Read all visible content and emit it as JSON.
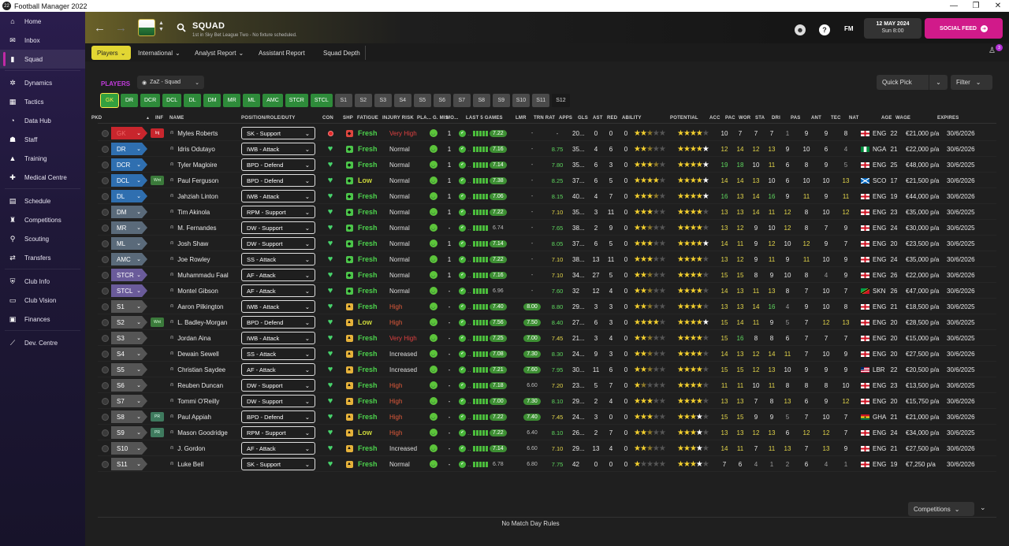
{
  "window": {
    "title": "Football Manager 2022"
  },
  "sidebar": {
    "items": [
      {
        "label": "Home",
        "icon": "home-icon",
        "glyph": "⌂"
      },
      {
        "label": "Inbox",
        "icon": "inbox-icon",
        "glyph": "✉"
      },
      {
        "label": "Squad",
        "icon": "squad-icon",
        "glyph": "▮",
        "active": true
      },
      {
        "label": "Dynamics",
        "icon": "dynamics-icon",
        "glyph": "✲"
      },
      {
        "label": "Tactics",
        "icon": "tactics-icon",
        "glyph": "▦"
      },
      {
        "label": "Data Hub",
        "icon": "data-hub-icon",
        "glyph": "◔"
      },
      {
        "label": "Staff",
        "icon": "staff-icon",
        "glyph": "☗"
      },
      {
        "label": "Training",
        "icon": "training-icon",
        "glyph": "▲"
      },
      {
        "label": "Medical Centre",
        "icon": "medical-icon",
        "glyph": "✚"
      },
      {
        "label": "Schedule",
        "icon": "schedule-icon",
        "glyph": "▤"
      },
      {
        "label": "Competitions",
        "icon": "trophy-icon",
        "glyph": "♜"
      },
      {
        "label": "Scouting",
        "icon": "scouting-icon",
        "glyph": "⚲"
      },
      {
        "label": "Transfers",
        "icon": "transfers-icon",
        "glyph": "⇄"
      },
      {
        "label": "Club Info",
        "icon": "club-info-icon",
        "glyph": "⛨"
      },
      {
        "label": "Club Vision",
        "icon": "club-vision-icon",
        "glyph": "▭"
      },
      {
        "label": "Finances",
        "icon": "finances-icon",
        "glyph": "▣"
      },
      {
        "label": "Dev. Centre",
        "icon": "dev-centre-icon",
        "glyph": "⟋"
      }
    ]
  },
  "header": {
    "title": "SQUAD",
    "subtitle": "1st in Sky Bet League Two - No fixture scheduled.",
    "fm_label": "FM",
    "date": "12 MAY 2024",
    "time": "Sun 8:00",
    "social_feed": "SOCIAL FEED",
    "notification_count": "3"
  },
  "subnav": {
    "tabs": [
      {
        "label": "Players",
        "dropdown": true,
        "active": true
      },
      {
        "label": "International",
        "dropdown": true
      },
      {
        "label": "Analyst Report",
        "dropdown": true
      },
      {
        "label": "Assistant Report",
        "dropdown": false
      },
      {
        "label": "Squad Depth",
        "dropdown": false
      }
    ]
  },
  "panel": {
    "players_label": "PLAYERS",
    "view": "ZaZ - Squad",
    "quick_pick": "Quick Pick",
    "filter": "Filter",
    "position_filters": [
      "GK",
      "DR",
      "DCR",
      "DCL",
      "DL",
      "DM",
      "MR",
      "ML",
      "AMC",
      "STCR",
      "STCL",
      "S1",
      "S2",
      "S3",
      "S4",
      "S5",
      "S6",
      "S7",
      "S8",
      "S9",
      "S10",
      "S11",
      "S12"
    ],
    "competitions": "Competitions",
    "no_match_rules": "No Match Day Rules"
  },
  "columns": {
    "pkd": "PKD",
    "inf": "INF",
    "name": "NAME",
    "role": "POSITION/ROLE/DUTY",
    "con": "CON",
    "shp": "SHP",
    "fatigue": "FATIGUE",
    "injury": "INJURY RISK",
    "pla": "PLA...",
    "gmis": "G. MIS",
    "mo": "MO...",
    "last5": "LAST 5 GAMES",
    "lmr": "LMR",
    "trnrat": "TRN RAT",
    "apps": "APPS",
    "gls": "GLS",
    "ast": "AST",
    "red": "RED",
    "ability": "ABILITY",
    "potential": "POTENTIAL",
    "acc": "ACC",
    "pac": "PAC",
    "wor": "WOR",
    "sta": "STA",
    "dri": "DRI",
    "pas": "PAS",
    "ant": "ANT",
    "tec": "TEC",
    "nat": "NAT",
    "age": "AGE",
    "wage": "WAGE",
    "expires": "EXPIRES"
  },
  "colors": {
    "gk": "#c8262d",
    "def": "#2f6fb0",
    "mid": "#5a6a7a",
    "att": "#6a5b9a",
    "sub": "#555555",
    "fresh": "#4cd24c",
    "low": "#c9d43a",
    "very_high": "#e04040",
    "high": "#e05a3a",
    "normal": "#dddddd",
    "increased": "#dddddd"
  },
  "players": [
    {
      "pos": "GK",
      "pos_group": "gk",
      "inf": "Inj",
      "name": "Myles Roberts",
      "role": "SK - Support",
      "con": "dot",
      "shp": "red",
      "fatigue": "Fresh",
      "injury": "Very High",
      "gmis": "1",
      "rating": "7.22",
      "lmr": "-",
      "trn": "-",
      "apps": "20...",
      "gls": "0",
      "ast": "0",
      "red": "0",
      "ability": 2.5,
      "potential": 4,
      "acc": "10",
      "pac": "7",
      "wor": "7",
      "sta": "7",
      "dri": "1",
      "pas": "9",
      "ant": "9",
      "tec": "8",
      "nat": "ENG",
      "flag": "eng",
      "age": "22",
      "wage": "€21,000 p/a",
      "expires": "30/6/2026"
    },
    {
      "pos": "DR",
      "pos_group": "def",
      "inf": "",
      "name": "Idris Odutayo",
      "role": "IWB - Attack",
      "con": "heart",
      "shp": "green",
      "fatigue": "Fresh",
      "injury": "Normal",
      "gmis": "1",
      "rating": "7.16",
      "lmr": "-",
      "trn": "8.75",
      "apps": "35...",
      "gls": "4",
      "ast": "6",
      "red": "0",
      "ability": 2.5,
      "potential": 4.5,
      "acc": "12",
      "pac": "14",
      "wor": "12",
      "sta": "13",
      "dri": "9",
      "pas": "10",
      "ant": "6",
      "tec": "4",
      "nat": "NGA",
      "flag": "nga",
      "age": "21",
      "wage": "€22,000 p/a",
      "expires": "30/6/2026"
    },
    {
      "pos": "DCR",
      "pos_group": "def",
      "inf": "",
      "name": "Tyler Magloire",
      "role": "BPD - Defend",
      "con": "heart",
      "shp": "green",
      "fatigue": "Fresh",
      "injury": "Normal",
      "gmis": "1",
      "rating": "7.14",
      "lmr": "-",
      "trn": "7.80",
      "apps": "35...",
      "gls": "6",
      "ast": "3",
      "red": "0",
      "ability": 3.5,
      "potential": 4.5,
      "acc": "19",
      "pac": "18",
      "wor": "10",
      "sta": "11",
      "dri": "6",
      "pas": "8",
      "ant": "9",
      "tec": "5",
      "nat": "ENG",
      "flag": "eng",
      "age": "25",
      "wage": "€48,000 p/a",
      "expires": "30/6/2025"
    },
    {
      "pos": "DCL",
      "pos_group": "def",
      "inf": "Wnt",
      "name": "Paul Ferguson",
      "role": "BPD - Defend",
      "con": "heart",
      "shp": "green",
      "fatigue": "Low",
      "injury": "Normal",
      "gmis": "1",
      "rating": "7.38",
      "lmr": "-",
      "trn": "8.25",
      "apps": "37...",
      "gls": "6",
      "ast": "5",
      "red": "0",
      "ability": 4,
      "potential": 4.5,
      "acc": "14",
      "pac": "14",
      "wor": "13",
      "sta": "10",
      "dri": "6",
      "pas": "10",
      "ant": "10",
      "tec": "13",
      "nat": "SCO",
      "flag": "sco",
      "age": "17",
      "wage": "€21,500 p/a",
      "expires": "30/6/2026"
    },
    {
      "pos": "DL",
      "pos_group": "def",
      "inf": "",
      "name": "Jahziah Linton",
      "role": "IWB - Attack",
      "con": "heart",
      "shp": "green",
      "fatigue": "Fresh",
      "injury": "Normal",
      "gmis": "1",
      "rating": "7.06",
      "lmr": "-",
      "trn": "8.15",
      "apps": "40...",
      "gls": "4",
      "ast": "7",
      "red": "0",
      "ability": 3.5,
      "potential": 4.5,
      "acc": "16",
      "pac": "13",
      "wor": "14",
      "sta": "16",
      "dri": "9",
      "pas": "11",
      "ant": "9",
      "tec": "11",
      "nat": "ENG",
      "flag": "eng",
      "age": "19",
      "wage": "€44,000 p/a",
      "expires": "30/6/2026"
    },
    {
      "pos": "DM",
      "pos_group": "mid",
      "inf": "",
      "name": "Tim Akinola",
      "role": "RPM - Support",
      "con": "heart",
      "shp": "green",
      "fatigue": "Fresh",
      "injury": "Normal",
      "gmis": "1",
      "rating": "7.22",
      "lmr": "-",
      "trn": "7.10",
      "apps": "35...",
      "gls": "3",
      "ast": "11",
      "red": "0",
      "ability": 3,
      "potential": 4,
      "acc": "13",
      "pac": "13",
      "wor": "14",
      "sta": "11",
      "dri": "12",
      "pas": "8",
      "ant": "10",
      "tec": "12",
      "nat": "ENG",
      "flag": "eng",
      "age": "23",
      "wage": "€35,000 p/a",
      "expires": "30/6/2025"
    },
    {
      "pos": "MR",
      "pos_group": "mid",
      "inf": "",
      "name": "M. Fernandes",
      "role": "DW - Support",
      "con": "heart",
      "shp": "green",
      "fatigue": "Fresh",
      "injury": "Normal",
      "gmis": "-",
      "rating": "6.74",
      "lmr": "-",
      "trn": "7.65",
      "apps": "38...",
      "gls": "2",
      "ast": "9",
      "red": "0",
      "ability": 2.5,
      "potential": 4,
      "acc": "13",
      "pac": "12",
      "wor": "9",
      "sta": "10",
      "dri": "12",
      "pas": "8",
      "ant": "7",
      "tec": "9",
      "nat": "ENG",
      "flag": "eng",
      "age": "24",
      "wage": "€30,000 p/a",
      "expires": "30/6/2025"
    },
    {
      "pos": "ML",
      "pos_group": "mid",
      "inf": "",
      "name": "Josh Shaw",
      "role": "DW - Support",
      "con": "heart",
      "shp": "green",
      "fatigue": "Fresh",
      "injury": "Normal",
      "gmis": "1",
      "rating": "7.14",
      "lmr": "-",
      "trn": "8.05",
      "apps": "37...",
      "gls": "6",
      "ast": "5",
      "red": "0",
      "ability": 3,
      "potential": 4.5,
      "acc": "14",
      "pac": "11",
      "wor": "9",
      "sta": "12",
      "dri": "10",
      "pas": "12",
      "ant": "9",
      "tec": "7",
      "nat": "ENG",
      "flag": "eng",
      "age": "20",
      "wage": "€23,500 p/a",
      "expires": "30/6/2025"
    },
    {
      "pos": "AMC",
      "pos_group": "mid",
      "inf": "",
      "name": "Joe Rowley",
      "role": "SS - Attack",
      "con": "heart",
      "shp": "green",
      "fatigue": "Fresh",
      "injury": "Normal",
      "gmis": "1",
      "rating": "7.22",
      "lmr": "-",
      "trn": "7.10",
      "apps": "38...",
      "gls": "13",
      "ast": "11",
      "red": "0",
      "ability": 3,
      "potential": 4,
      "acc": "13",
      "pac": "12",
      "wor": "9",
      "sta": "11",
      "dri": "9",
      "pas": "11",
      "ant": "10",
      "tec": "9",
      "nat": "ENG",
      "flag": "eng",
      "age": "24",
      "wage": "€35,000 p/a",
      "expires": "30/6/2026"
    },
    {
      "pos": "STCR",
      "pos_group": "att",
      "inf": "",
      "name": "Muhammadu Faal",
      "role": "AF - Attack",
      "con": "heart",
      "shp": "green",
      "fatigue": "Fresh",
      "injury": "Normal",
      "gmis": "1",
      "rating": "7.16",
      "lmr": "-",
      "trn": "7.10",
      "apps": "34...",
      "gls": "27",
      "ast": "5",
      "red": "0",
      "ability": 2.5,
      "potential": 4,
      "acc": "15",
      "pac": "15",
      "wor": "8",
      "sta": "9",
      "dri": "10",
      "pas": "8",
      "ant": "4",
      "tec": "9",
      "nat": "ENG",
      "flag": "eng",
      "age": "26",
      "wage": "€22,000 p/a",
      "expires": "30/6/2026"
    },
    {
      "pos": "STCL",
      "pos_group": "att",
      "inf": "",
      "name": "Montel Gibson",
      "role": "AF - Attack",
      "con": "heart",
      "shp": "green",
      "fatigue": "Fresh",
      "injury": "Normal",
      "gmis": "-",
      "rating": "6.96",
      "lmr": "-",
      "trn": "7.60",
      "apps": "32",
      "gls": "12",
      "ast": "4",
      "red": "0",
      "ability": 2.5,
      "potential": 4,
      "acc": "14",
      "pac": "13",
      "wor": "11",
      "sta": "13",
      "dri": "8",
      "pas": "7",
      "ant": "10",
      "tec": "7",
      "nat": "SKN",
      "flag": "skn",
      "age": "26",
      "wage": "€47,000 p/a",
      "expires": "30/6/2026"
    },
    {
      "pos": "S1",
      "pos_group": "sub",
      "inf": "",
      "name": "Aaron Pilkington",
      "role": "IWB - Attack",
      "con": "heart",
      "shp": "yellow",
      "fatigue": "Fresh",
      "injury": "High",
      "gmis": "-",
      "rating": "7.40",
      "lmr": "8.00",
      "trn": "8.80",
      "apps": "29...",
      "gls": "3",
      "ast": "3",
      "red": "0",
      "ability": 2.5,
      "potential": 4,
      "acc": "13",
      "pac": "13",
      "wor": "14",
      "sta": "16",
      "dri": "4",
      "pas": "9",
      "ant": "10",
      "tec": "8",
      "nat": "ENG",
      "flag": "eng",
      "age": "21",
      "wage": "€18,500 p/a",
      "expires": "30/6/2025"
    },
    {
      "pos": "S2",
      "pos_group": "sub",
      "inf": "Wnt",
      "name": "L. Badley-Morgan",
      "role": "BPD - Defend",
      "con": "heart",
      "shp": "yellow",
      "fatigue": "Low",
      "injury": "High",
      "gmis": "-",
      "rating": "7.56",
      "lmr": "7.50",
      "trn": "8.40",
      "apps": "27...",
      "gls": "6",
      "ast": "3",
      "red": "0",
      "ability": 4,
      "potential": 4.5,
      "acc": "15",
      "pac": "14",
      "wor": "11",
      "sta": "9",
      "dri": "5",
      "pas": "7",
      "ant": "12",
      "tec": "13",
      "nat": "ENG",
      "flag": "eng",
      "age": "20",
      "wage": "€28,500 p/a",
      "expires": "30/6/2025"
    },
    {
      "pos": "S3",
      "pos_group": "sub",
      "inf": "",
      "name": "Jordan Aina",
      "role": "IWB - Attack",
      "con": "heart",
      "shp": "yellow",
      "fatigue": "Fresh",
      "injury": "Very High",
      "gmis": "-",
      "rating": "7.25",
      "lmr": "7.00",
      "trn": "7.45",
      "apps": "21...",
      "gls": "3",
      "ast": "4",
      "red": "0",
      "ability": 2.5,
      "potential": 4,
      "acc": "15",
      "pac": "16",
      "wor": "8",
      "sta": "8",
      "dri": "6",
      "pas": "7",
      "ant": "7",
      "tec": "7",
      "nat": "ENG",
      "flag": "eng",
      "age": "20",
      "wage": "€15,000 p/a",
      "expires": "30/6/2025"
    },
    {
      "pos": "S4",
      "pos_group": "sub",
      "inf": "",
      "name": "Dewain Sewell",
      "role": "SS - Attack",
      "con": "heart",
      "shp": "yellow",
      "fatigue": "Fresh",
      "injury": "Increased",
      "gmis": "-",
      "rating": "7.08",
      "lmr": "7.30",
      "trn": "8.30",
      "apps": "24...",
      "gls": "9",
      "ast": "3",
      "red": "0",
      "ability": 2.5,
      "potential": 4,
      "acc": "14",
      "pac": "13",
      "wor": "12",
      "sta": "14",
      "dri": "11",
      "pas": "7",
      "ant": "10",
      "tec": "9",
      "nat": "ENG",
      "flag": "eng",
      "age": "20",
      "wage": "€27,500 p/a",
      "expires": "30/6/2026"
    },
    {
      "pos": "S5",
      "pos_group": "sub",
      "inf": "",
      "name": "Christian Saydee",
      "role": "AF - Attack",
      "con": "heart",
      "shp": "yellow",
      "fatigue": "Fresh",
      "injury": "Increased",
      "gmis": "-",
      "rating": "7.21",
      "lmr": "7.60",
      "trn": "7.95",
      "apps": "30...",
      "gls": "11",
      "ast": "6",
      "red": "0",
      "ability": 2.5,
      "potential": 4,
      "acc": "15",
      "pac": "15",
      "wor": "12",
      "sta": "13",
      "dri": "10",
      "pas": "9",
      "ant": "9",
      "tec": "9",
      "nat": "LBR",
      "flag": "lbr",
      "age": "22",
      "wage": "€20,500 p/a",
      "expires": "30/6/2025"
    },
    {
      "pos": "S6",
      "pos_group": "sub",
      "inf": "",
      "name": "Reuben Duncan",
      "role": "DW - Support",
      "con": "heart",
      "shp": "yellow",
      "fatigue": "Fresh",
      "injury": "High",
      "gmis": "-",
      "rating": "7.18",
      "lmr": "6.60",
      "trn": "7.20",
      "apps": "23...",
      "gls": "5",
      "ast": "7",
      "red": "0",
      "ability": 1.5,
      "potential": 4,
      "acc": "11",
      "pac": "11",
      "wor": "10",
      "sta": "11",
      "dri": "8",
      "pas": "8",
      "ant": "8",
      "tec": "10",
      "nat": "ENG",
      "flag": "eng",
      "age": "23",
      "wage": "€13,500 p/a",
      "expires": "30/6/2025"
    },
    {
      "pos": "S7",
      "pos_group": "sub",
      "inf": "",
      "name": "Tommi O'Reilly",
      "role": "DW - Support",
      "con": "heart",
      "shp": "yellow",
      "fatigue": "Fresh",
      "injury": "High",
      "gmis": "-",
      "rating": "7.00",
      "lmr": "7.30",
      "trn": "8.10",
      "apps": "29...",
      "gls": "2",
      "ast": "4",
      "red": "0",
      "ability": 3,
      "potential": 4,
      "acc": "13",
      "pac": "13",
      "wor": "7",
      "sta": "8",
      "dri": "13",
      "pas": "6",
      "ant": "9",
      "tec": "12",
      "nat": "ENG",
      "flag": "eng",
      "age": "20",
      "wage": "€15,750 p/a",
      "expires": "30/6/2026"
    },
    {
      "pos": "S8",
      "pos_group": "sub",
      "inf": "PR",
      "name": "Paul Appiah",
      "role": "BPD - Defend",
      "con": "heart",
      "shp": "yellow",
      "fatigue": "Fresh",
      "injury": "High",
      "gmis": "-",
      "rating": "7.22",
      "lmr": "7.40",
      "trn": "7.45",
      "apps": "24...",
      "gls": "3",
      "ast": "0",
      "red": "0",
      "ability": 3,
      "potential": 3.5,
      "acc": "15",
      "pac": "15",
      "wor": "9",
      "sta": "9",
      "dri": "5",
      "pas": "7",
      "ant": "10",
      "tec": "7",
      "nat": "GHA",
      "flag": "gha",
      "age": "21",
      "wage": "€21,000 p/a",
      "expires": "30/6/2026"
    },
    {
      "pos": "S9",
      "pos_group": "sub",
      "inf": "PR",
      "name": "Mason Goodridge",
      "role": "RPM - Support",
      "con": "heart",
      "shp": "yellow",
      "fatigue": "Low",
      "injury": "High",
      "gmis": "-",
      "rating": "7.22",
      "lmr": "6.40",
      "trn": "8.10",
      "apps": "26...",
      "gls": "2",
      "ast": "7",
      "red": "0",
      "ability": 2.5,
      "potential": 3.5,
      "acc": "13",
      "pac": "13",
      "wor": "12",
      "sta": "13",
      "dri": "6",
      "pas": "12",
      "ant": "12",
      "tec": "7",
      "nat": "ENG",
      "flag": "eng",
      "age": "24",
      "wage": "€34,000 p/a",
      "expires": "30/6/2025"
    },
    {
      "pos": "S10",
      "pos_group": "sub",
      "inf": "",
      "name": "J. Gordon",
      "role": "AF - Attack",
      "con": "heart",
      "shp": "yellow",
      "fatigue": "Fresh",
      "injury": "Increased",
      "gmis": "-",
      "rating": "7.14",
      "lmr": "6.60",
      "trn": "7.10",
      "apps": "29...",
      "gls": "13",
      "ast": "4",
      "red": "0",
      "ability": 2.5,
      "potential": 3.5,
      "acc": "14",
      "pac": "11",
      "wor": "7",
      "sta": "11",
      "dri": "13",
      "pas": "7",
      "ant": "13",
      "tec": "9",
      "nat": "ENG",
      "flag": "eng",
      "age": "21",
      "wage": "€27,500 p/a",
      "expires": "30/6/2026"
    },
    {
      "pos": "S11",
      "pos_group": "sub",
      "inf": "",
      "name": "Luke Bell",
      "role": "SK - Support",
      "con": "heart",
      "shp": "yellow",
      "fatigue": "Fresh",
      "injury": "Normal",
      "gmis": "-",
      "rating": "6.78",
      "lmr": "6.80",
      "trn": "7.75",
      "apps": "42",
      "gls": "0",
      "ast": "0",
      "red": "0",
      "ability": 1,
      "potential": 3.5,
      "acc": "7",
      "pac": "6",
      "wor": "4",
      "sta": "1",
      "dri": "2",
      "pas": "6",
      "ant": "4",
      "tec": "1",
      "nat": "ENG",
      "flag": "eng",
      "age": "19",
      "wage": "€7,250 p/a",
      "expires": "30/6/2026"
    }
  ]
}
